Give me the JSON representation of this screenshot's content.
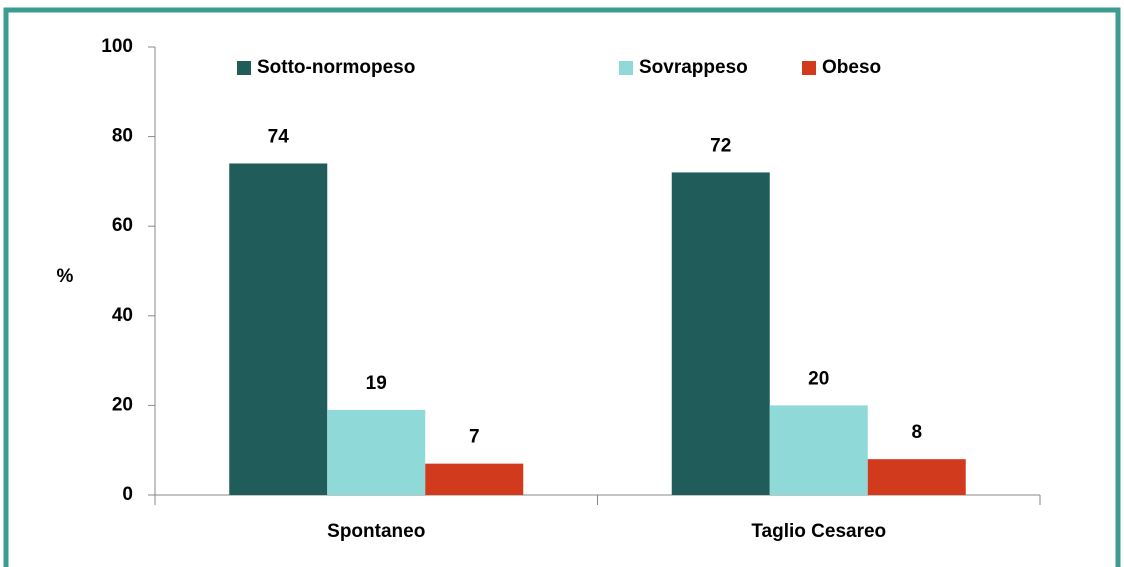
{
  "chart_data": {
    "type": "bar",
    "categories": [
      "Spontaneo",
      "Taglio Cesareo"
    ],
    "series": [
      {
        "name": "Sotto-normopeso",
        "color": "#1f5c5a",
        "values": [
          74,
          72
        ]
      },
      {
        "name": "Sovrappeso",
        "color": "#8fdad8",
        "values": [
          19,
          20
        ]
      },
      {
        "name": "Obeso",
        "color": "#d23a1e",
        "values": [
          7,
          8
        ]
      }
    ],
    "y_label": "%",
    "ylim": [
      0,
      100
    ],
    "yticks": [
      0,
      20,
      40,
      60,
      80,
      100
    ],
    "legend": "top"
  }
}
